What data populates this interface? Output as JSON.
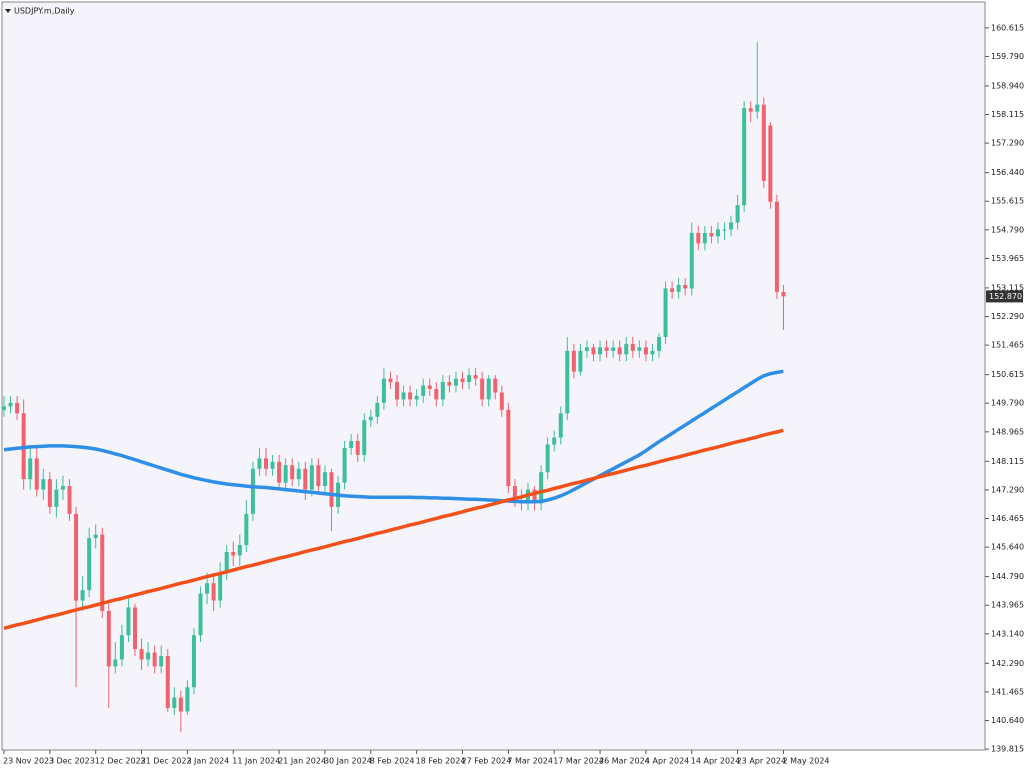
{
  "chart_data": {
    "type": "candlestick",
    "title": "USDJPY.m,Daily",
    "up_color": "#3cbf9c",
    "down_color": "#f0626e",
    "categories": [
      "23 Nov 2023",
      null,
      null,
      null,
      null,
      null,
      null,
      "3 Dec 2023",
      null,
      null,
      null,
      null,
      null,
      null,
      "12 Dec 2023",
      null,
      null,
      null,
      null,
      null,
      null,
      "21 Dec 2023",
      null,
      null,
      null,
      null,
      null,
      null,
      "2 Jan 2024",
      null,
      null,
      null,
      null,
      null,
      null,
      "11 Jan 2024",
      null,
      null,
      null,
      null,
      null,
      null,
      "21 Jan 2024",
      null,
      null,
      null,
      null,
      null,
      null,
      "30 Jan 2024",
      null,
      null,
      null,
      null,
      null,
      null,
      "8 Feb 2024",
      null,
      null,
      null,
      null,
      null,
      null,
      "18 Feb 2024",
      null,
      null,
      null,
      null,
      null,
      null,
      "27 Feb 2024",
      null,
      null,
      null,
      null,
      null,
      null,
      "7 Mar 2024",
      null,
      null,
      null,
      null,
      null,
      null,
      "17 Mar 2024",
      null,
      null,
      null,
      null,
      null,
      null,
      "26 Mar 2024",
      null,
      null,
      null,
      null,
      null,
      null,
      "4 Apr 2024",
      null,
      null,
      null,
      null,
      null,
      null,
      "14 Apr 2024",
      null,
      null,
      null,
      null,
      null,
      null,
      "23 Apr 2024",
      null,
      null,
      null,
      null,
      null,
      null,
      "2 May 2024"
    ],
    "open": [
      149.6,
      149.7,
      149.8,
      149.5,
      147.6,
      148.2,
      147.3,
      147.6,
      146.8,
      147.3,
      147.4,
      146.6,
      144.1,
      144.4,
      145.9,
      146.0,
      143.8,
      142.2,
      142.4,
      143.1,
      143.9,
      142.7,
      142.4,
      142.6,
      142.2,
      142.5,
      141.0,
      141.3,
      140.9,
      141.6,
      143.1,
      144.3,
      144.6,
      144.1,
      144.9,
      145.5,
      145.4,
      145.7,
      146.6,
      147.9,
      148.2,
      147.9,
      148.1,
      147.5,
      148.0,
      147.6,
      147.9,
      147.3,
      148.0,
      147.4,
      147.8,
      146.8,
      147.5,
      148.5,
      148.7,
      148.3,
      149.3,
      149.4,
      149.8,
      150.5,
      150.4,
      149.9,
      150.1,
      149.9,
      150.0,
      150.3,
      150.2,
      149.9,
      150.4,
      150.3,
      150.5,
      150.4,
      150.6,
      150.5,
      149.9,
      150.5,
      150.1,
      149.6,
      147.4,
      147.0,
      146.9,
      147.3,
      146.9,
      147.8,
      148.6,
      148.8,
      149.5,
      151.3,
      150.7,
      151.3,
      151.4,
      151.2,
      151.4,
      151.3,
      151.4,
      151.2,
      151.5,
      151.3,
      151.4,
      151.2,
      151.3,
      151.7,
      153.1,
      153.0,
      153.2,
      153.1,
      154.7,
      154.4,
      154.7,
      154.6,
      154.8,
      154.8,
      155.0,
      155.5,
      158.3,
      158.2,
      158.4,
      157.8,
      155.6,
      153.0
    ],
    "high": [
      150.0,
      150.0,
      150.0,
      149.9,
      148.5,
      148.5,
      147.9,
      147.8,
      147.6,
      147.7,
      147.6,
      146.8,
      144.8,
      146.2,
      146.3,
      146.2,
      144.0,
      142.9,
      143.4,
      144.2,
      144.0,
      143.0,
      142.9,
      142.8,
      142.8,
      142.7,
      141.6,
      141.5,
      141.8,
      143.3,
      144.5,
      144.9,
      144.8,
      145.2,
      145.7,
      145.8,
      146.0,
      147.0,
      148.1,
      148.5,
      148.5,
      148.3,
      148.3,
      148.2,
      148.2,
      148.1,
      148.1,
      148.2,
      148.2,
      148.0,
      147.9,
      147.7,
      148.7,
      148.9,
      148.9,
      149.5,
      149.6,
      150.0,
      150.8,
      150.7,
      150.6,
      150.3,
      150.3,
      150.2,
      150.5,
      150.5,
      150.4,
      150.6,
      150.6,
      150.7,
      150.7,
      150.8,
      150.8,
      150.7,
      150.6,
      150.6,
      150.3,
      149.8,
      147.6,
      147.3,
      147.5,
      147.4,
      148.0,
      148.8,
      149.0,
      149.7,
      151.7,
      151.5,
      151.5,
      151.6,
      151.5,
      151.6,
      151.6,
      151.6,
      151.6,
      151.7,
      151.7,
      151.6,
      151.6,
      151.5,
      151.8,
      153.3,
      153.3,
      153.4,
      153.4,
      155.0,
      154.9,
      154.9,
      154.9,
      155.0,
      155.0,
      155.2,
      155.8,
      158.5,
      158.5,
      160.2,
      158.6,
      157.9,
      155.8,
      153.2
    ],
    "low": [
      149.4,
      149.5,
      149.3,
      147.3,
      147.3,
      147.1,
      147.0,
      146.6,
      146.5,
      147.0,
      146.4,
      141.6,
      143.8,
      144.2,
      145.6,
      143.6,
      141.0,
      142.0,
      142.2,
      142.9,
      142.5,
      142.1,
      142.2,
      142.0,
      142.0,
      140.9,
      140.8,
      140.3,
      140.8,
      141.4,
      142.9,
      144.0,
      143.8,
      143.9,
      144.7,
      145.1,
      145.1,
      145.5,
      146.4,
      147.7,
      147.7,
      147.7,
      147.3,
      147.3,
      147.4,
      147.4,
      147.0,
      147.1,
      147.2,
      147.2,
      146.1,
      146.6,
      147.3,
      148.3,
      148.1,
      148.1,
      149.1,
      149.2,
      149.6,
      150.2,
      149.7,
      149.7,
      149.7,
      149.7,
      149.8,
      150.0,
      149.7,
      149.7,
      150.1,
      150.1,
      150.2,
      150.2,
      150.3,
      149.7,
      149.7,
      149.9,
      149.4,
      147.2,
      146.8,
      146.7,
      146.7,
      146.7,
      146.7,
      147.6,
      148.4,
      148.6,
      149.3,
      150.5,
      150.6,
      151.1,
      151.0,
      151.0,
      151.1,
      151.1,
      151.0,
      151.0,
      151.1,
      151.1,
      151.0,
      151.0,
      151.1,
      151.5,
      152.8,
      152.8,
      152.9,
      152.9,
      154.2,
      154.2,
      154.4,
      154.4,
      154.5,
      154.6,
      154.8,
      155.3,
      157.9,
      158.0,
      156.0,
      155.4,
      152.8,
      151.9
    ],
    "close": [
      149.7,
      149.8,
      149.5,
      147.6,
      148.2,
      147.3,
      147.6,
      146.8,
      147.3,
      147.4,
      146.6,
      144.1,
      144.4,
      145.9,
      146.0,
      143.8,
      142.2,
      142.4,
      143.1,
      143.9,
      142.7,
      142.4,
      142.6,
      142.2,
      142.5,
      141.0,
      141.3,
      140.9,
      141.6,
      143.1,
      144.3,
      144.6,
      144.1,
      144.9,
      145.5,
      145.4,
      145.7,
      146.6,
      147.9,
      148.2,
      147.9,
      148.1,
      147.5,
      148.0,
      147.6,
      147.9,
      147.3,
      148.0,
      147.4,
      147.8,
      146.8,
      147.5,
      148.5,
      148.7,
      148.3,
      149.3,
      149.4,
      149.8,
      150.5,
      150.4,
      149.9,
      150.1,
      149.9,
      150.0,
      150.3,
      150.2,
      149.9,
      150.4,
      150.3,
      150.5,
      150.4,
      150.6,
      150.5,
      149.9,
      150.5,
      150.1,
      149.6,
      147.4,
      147.0,
      146.9,
      147.3,
      146.9,
      147.8,
      148.6,
      148.8,
      149.5,
      151.3,
      150.7,
      151.3,
      151.4,
      151.2,
      151.4,
      151.3,
      151.4,
      151.2,
      151.5,
      151.3,
      151.4,
      151.2,
      151.3,
      151.7,
      153.1,
      153.0,
      153.2,
      153.1,
      154.7,
      154.4,
      154.7,
      154.6,
      154.8,
      154.8,
      155.0,
      155.5,
      158.3,
      158.2,
      158.4,
      156.2,
      155.6,
      153.0,
      152.87
    ],
    "moving_averages": [
      {
        "color": "#2f8fe6",
        "values": [
          148.45,
          148.47,
          148.49,
          148.51,
          148.53,
          148.54,
          148.55,
          148.56,
          148.56,
          148.56,
          148.55,
          148.54,
          148.52,
          148.5,
          148.47,
          148.43,
          148.38,
          148.33,
          148.28,
          148.22,
          148.16,
          148.1,
          148.04,
          147.98,
          147.92,
          147.86,
          147.8,
          147.74,
          147.69,
          147.64,
          147.6,
          147.56,
          147.52,
          147.49,
          147.46,
          147.44,
          147.42,
          147.4,
          147.38,
          147.37,
          147.36,
          147.34,
          147.32,
          147.3,
          147.28,
          147.26,
          147.24,
          147.22,
          147.2,
          147.18,
          147.16,
          147.14,
          147.12,
          147.11,
          147.1,
          147.09,
          147.08,
          147.08,
          147.08,
          147.08,
          147.08,
          147.08,
          147.08,
          147.07,
          147.07,
          147.06,
          147.06,
          147.05,
          147.05,
          147.04,
          147.03,
          147.02,
          147.02,
          147.01,
          147.0,
          146.99,
          146.98,
          146.97,
          146.96,
          146.95,
          146.95,
          146.95,
          146.96,
          147.0,
          147.05,
          147.12,
          147.2,
          147.3,
          147.4,
          147.5,
          147.6,
          147.7,
          147.8,
          147.9,
          148.0,
          148.1,
          148.2,
          148.3,
          148.42,
          148.55,
          148.68,
          148.8,
          148.92,
          149.04,
          149.16,
          149.28,
          149.4,
          149.52,
          149.64,
          149.76,
          149.88,
          150.0,
          150.12,
          150.24,
          150.36,
          150.48,
          150.58,
          150.64,
          150.68,
          150.71
        ]
      },
      {
        "color": "#f2501a",
        "values": [
          143.3,
          143.35,
          143.4,
          143.44,
          143.49,
          143.54,
          143.59,
          143.64,
          143.68,
          143.73,
          143.78,
          143.83,
          143.88,
          143.92,
          143.97,
          144.02,
          144.07,
          144.12,
          144.16,
          144.21,
          144.26,
          144.31,
          144.36,
          144.4,
          144.45,
          144.5,
          144.55,
          144.6,
          144.64,
          144.69,
          144.74,
          144.79,
          144.84,
          144.88,
          144.93,
          144.98,
          145.03,
          145.08,
          145.12,
          145.17,
          145.22,
          145.27,
          145.32,
          145.36,
          145.41,
          145.46,
          145.51,
          145.56,
          145.6,
          145.65,
          145.7,
          145.75,
          145.8,
          145.84,
          145.89,
          145.94,
          145.99,
          146.04,
          146.08,
          146.13,
          146.18,
          146.23,
          146.28,
          146.32,
          146.37,
          146.42,
          146.47,
          146.52,
          146.56,
          146.61,
          146.66,
          146.71,
          146.76,
          146.8,
          146.85,
          146.9,
          146.95,
          147.0,
          147.04,
          147.09,
          147.14,
          147.19,
          147.24,
          147.28,
          147.33,
          147.38,
          147.43,
          147.48,
          147.52,
          147.57,
          147.62,
          147.67,
          147.72,
          147.76,
          147.81,
          147.86,
          147.91,
          147.96,
          148.0,
          148.05,
          148.1,
          148.15,
          148.2,
          148.24,
          148.29,
          148.34,
          148.39,
          148.44,
          148.48,
          148.53,
          148.58,
          148.63,
          148.68,
          148.72,
          148.77,
          148.82,
          148.87,
          148.92,
          148.96,
          149.01
        ]
      }
    ],
    "ylim": [
      139.79,
      161.36
    ],
    "yticks": [
      160.615,
      {
        "value": 159.79,
        "label": "159.790"
      },
      {
        "value": 158.94,
        "label": "158.940"
      },
      158.115,
      {
        "value": 157.29,
        "label": "157.290"
      },
      {
        "value": 156.44,
        "label": "156.440"
      },
      155.615,
      {
        "value": 154.79,
        "label": "154.790"
      },
      153.965,
      153.115,
      {
        "value": 152.29,
        "label": "152.290"
      },
      151.465,
      150.615,
      {
        "value": 149.79,
        "label": "149.790"
      },
      148.965,
      148.115,
      {
        "value": 147.29,
        "label": "147.290"
      },
      146.465,
      {
        "value": 145.64,
        "label": "145.640"
      },
      {
        "value": 144.79,
        "label": "144.790"
      },
      143.965,
      {
        "value": 143.14,
        "label": "143.140"
      },
      {
        "value": 142.29,
        "label": "142.290"
      },
      141.465,
      {
        "value": 140.64,
        "label": "140.640"
      },
      139.815
    ],
    "current_price": {
      "value": 152.87,
      "label": "152.870"
    }
  }
}
